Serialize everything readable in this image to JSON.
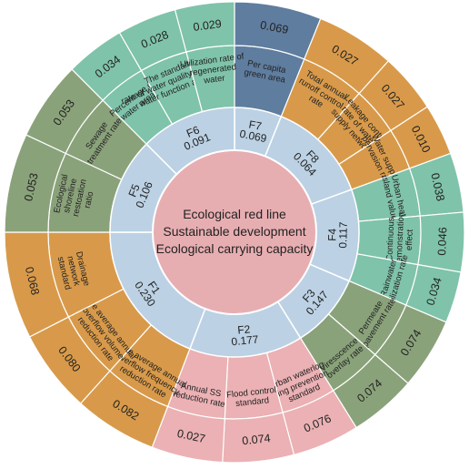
{
  "center": {
    "lines": [
      "Ecological red line",
      "Sustainable development",
      "Ecological carrying capacity"
    ]
  },
  "colors": {
    "center": "#e7aeb2",
    "inner_ring": "#bcd1e4",
    "F1": "#d89a4a",
    "F2": "#ebb1b4",
    "F3": "#8aa27a",
    "F4": "#7fc3aa",
    "F5": "#8aa27a",
    "F6": "#7fc3aa",
    "F7": "#5f7d9f",
    "F8": "#d89a4a",
    "stroke": "#ffffff"
  },
  "groups": [
    {
      "id": "F1",
      "weight": "0.230",
      "indicators": [
        {
          "label": [
            "Drainage",
            "network",
            "standard"
          ],
          "value": "0.068"
        },
        {
          "label": [
            "The average annual",
            "overflow volume",
            "reduction rate"
          ],
          "value": "0.080"
        },
        {
          "label": [
            "The average annual",
            "overflow frequency",
            "reduction rate"
          ],
          "value": "0.082"
        }
      ]
    },
    {
      "id": "F2",
      "weight": "0.177",
      "indicators": [
        {
          "label": [
            "Urban waterlog",
            "ging prevention",
            "standard"
          ],
          "value": "0.076"
        },
        {
          "label": [
            "Flood control",
            "standard"
          ],
          "value": "0.074"
        },
        {
          "label": [
            "Annual SS",
            "reduction rate"
          ],
          "value": "0.027"
        }
      ]
    },
    {
      "id": "F3",
      "weight": "0.147",
      "indicators": [
        {
          "label": [
            "Permeate",
            "pavement rate"
          ],
          "value": "0.074"
        },
        {
          "label": [
            "Viresscence",
            "overlay rate"
          ],
          "value": "0.074"
        }
      ]
    },
    {
      "id": "F4",
      "weight": "0.117",
      "indicators": [
        {
          "label": [
            "Rainwater",
            "utilization rate"
          ],
          "value": "0.034"
        },
        {
          "label": [
            "Continuous",
            "demonstration",
            "effect"
          ],
          "value": "0.046"
        },
        {
          "label": [
            "Urban heat",
            "island value"
          ],
          "value": "0.038"
        }
      ]
    },
    {
      "id": "F8",
      "weight": "0.064",
      "indicators": [
        {
          "label": [
            "Water supply",
            "pervasion rate"
          ],
          "value": "0.010"
        },
        {
          "label": [
            "Leakage control",
            "rate of water",
            "supply network"
          ],
          "value": "0.027"
        },
        {
          "label": [
            "Total annual",
            "runoff control",
            "rate"
          ],
          "value": "0.027"
        }
      ]
    },
    {
      "id": "F7",
      "weight": "0.069",
      "indicators": [
        {
          "label": [
            "Per capita",
            "green area"
          ],
          "value": "0.069"
        }
      ]
    },
    {
      "id": "F6",
      "weight": "0.091",
      "indicators": [
        {
          "label": [
            "Utilization rate of",
            "regenerated",
            "water"
          ],
          "value": "0.029"
        },
        {
          "label": [
            "The standard",
            "rate of water quality in urban",
            "water function areas"
          ],
          "value": "0.028"
        },
        {
          "label": [
            "Percentage of",
            "water area"
          ],
          "value": "0.034"
        }
      ]
    },
    {
      "id": "F5",
      "weight": "0.106",
      "indicators": [
        {
          "label": [
            "Sewage",
            "treatment rate"
          ],
          "value": "0.053"
        },
        {
          "label": [
            "Ecological",
            "shoreline",
            "restoation",
            "ratio"
          ],
          "value": "0.053"
        }
      ]
    }
  ]
}
